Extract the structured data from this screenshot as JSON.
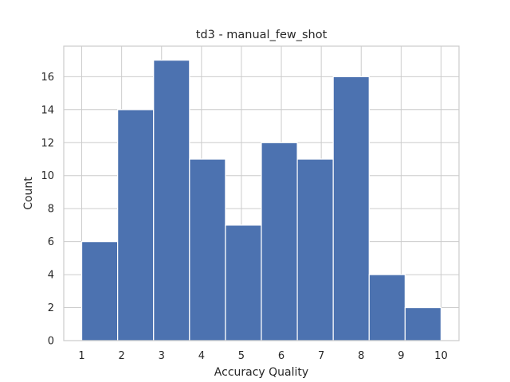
{
  "chart_data": {
    "type": "bar",
    "title": "td3 - manual_few_shot",
    "xlabel": "Accuracy Quality",
    "ylabel": "Count",
    "bins": [
      {
        "start": 1.0,
        "end": 1.9,
        "count": 6
      },
      {
        "start": 1.9,
        "end": 2.8,
        "count": 14
      },
      {
        "start": 2.8,
        "end": 3.7,
        "count": 17
      },
      {
        "start": 3.7,
        "end": 4.6,
        "count": 11
      },
      {
        "start": 4.6,
        "end": 5.5,
        "count": 7
      },
      {
        "start": 5.5,
        "end": 6.4,
        "count": 12
      },
      {
        "start": 6.4,
        "end": 7.3,
        "count": 11
      },
      {
        "start": 7.3,
        "end": 8.2,
        "count": 16
      },
      {
        "start": 8.2,
        "end": 9.1,
        "count": 4
      },
      {
        "start": 9.1,
        "end": 10.0,
        "count": 2
      }
    ],
    "xlim": [
      0.55,
      10.45
    ],
    "ylim": [
      0,
      17.85
    ],
    "xticks": [
      "1",
      "2",
      "3",
      "4",
      "5",
      "6",
      "7",
      "8",
      "9",
      "10"
    ],
    "yticks": [
      "0",
      "2",
      "4",
      "6",
      "8",
      "10",
      "12",
      "14",
      "16"
    ],
    "grid": true,
    "bar_color": "#4c72b0",
    "grid_color": "#cccccc",
    "background": "#ffffff"
  }
}
